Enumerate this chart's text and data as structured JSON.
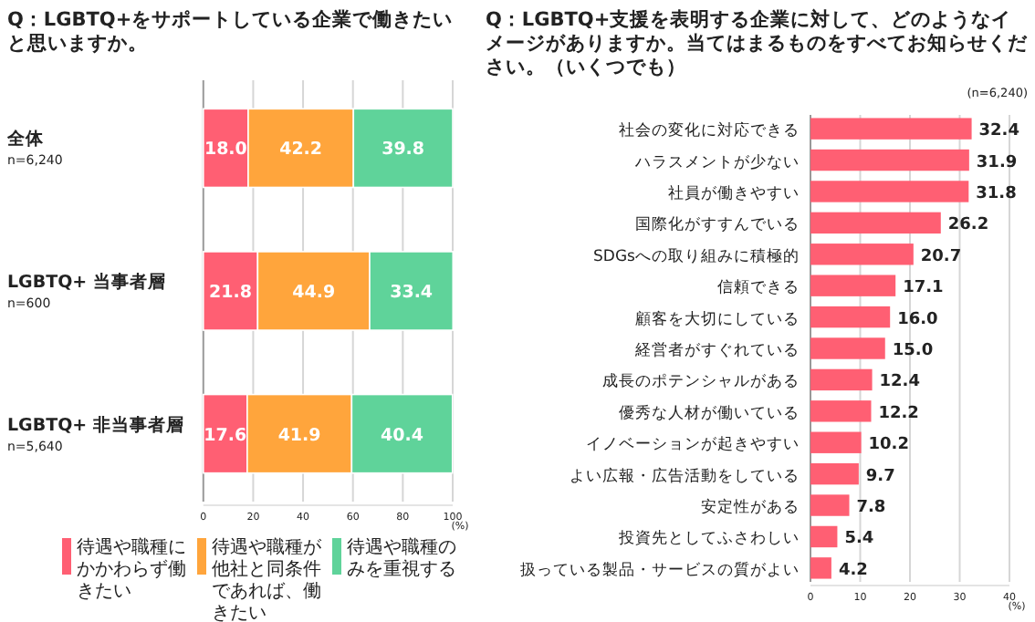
{
  "chart_data": [
    {
      "type": "bar",
      "orientation": "horizontal",
      "stacked": true,
      "title": "Q：LGBTQ+をサポートしている企業で働きたいと思いますか。",
      "categories": [
        "全体\nn=6,240",
        "LGBTQ+ 当事者層\nn=600",
        "LGBTQ+ 非当事者層\nn=5,640"
      ],
      "series": [
        {
          "name": "待遇や職種にかかわらず働きたい",
          "color": "#ff5f73",
          "values": [
            18.0,
            21.8,
            17.6
          ],
          "value_labels": [
            "18.0",
            "21.8",
            "17.6"
          ]
        },
        {
          "name": "待遇や職種が他社と同条件であれば、働きたい",
          "color": "#ffa53c",
          "values": [
            42.2,
            44.9,
            41.9
          ],
          "value_labels": [
            "42.2",
            "44.9",
            "41.9"
          ]
        },
        {
          "name": "待遇や職種のみを重視する",
          "color": "#5fd39a",
          "values": [
            39.8,
            33.4,
            40.4
          ],
          "value_labels": [
            "39.8",
            "33.4",
            "40.4"
          ]
        }
      ],
      "xlim": [
        0,
        100
      ],
      "xticks": [
        0,
        20,
        40,
        60,
        80,
        100
      ],
      "xlabel": "(%)",
      "grid": "x",
      "legend": "bottom"
    },
    {
      "type": "bar",
      "orientation": "horizontal",
      "title": "Q：LGBTQ+支援を表明する企業に対して、どのようなイメージがありますか。当てはまるものをすべてお知らせください。（いくつでも）",
      "subtitle": "(n=6,240)",
      "categories": [
        "社会の変化に対応できる",
        "ハラスメントが少ない",
        "社員が働きやすい",
        "国際化がすすんでいる",
        "SDGsへの取り組みに積極的",
        "信頼できる",
        "顧客を大切にしている",
        "経営者がすぐれている",
        "成長のポテンシャルがある",
        "優秀な人材が働いている",
        "イノベーションが起きやすい",
        "よい広報・広告活動をしている",
        "安定性がある",
        "投資先としてふさわしい",
        "扱っている製品・サービスの質がよい"
      ],
      "series": [
        {
          "color": "#ff5f73",
          "values": [
            32.4,
            31.9,
            31.8,
            26.2,
            20.7,
            17.1,
            16.0,
            15.0,
            12.4,
            12.2,
            10.2,
            9.7,
            7.8,
            5.4,
            4.2
          ],
          "value_labels": [
            "32.4",
            "31.9",
            "31.8",
            "26.2",
            "20.7",
            "17.1",
            "16.0",
            "15.0",
            "12.4",
            "12.2",
            "10.2",
            "9.7",
            "7.8",
            "5.4",
            "4.2"
          ]
        }
      ],
      "xlim": [
        0,
        40
      ],
      "xticks": [
        0,
        10,
        20,
        30,
        40
      ],
      "xlabel": "(%)",
      "grid": "x"
    }
  ]
}
